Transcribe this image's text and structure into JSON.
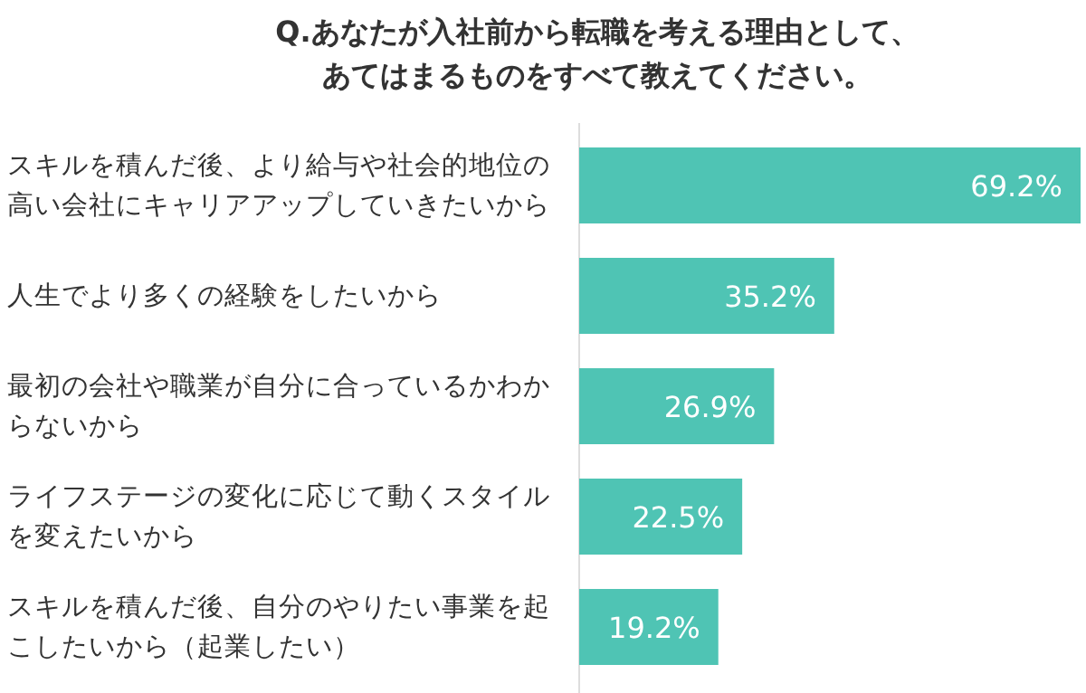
{
  "chart_data": {
    "type": "bar",
    "orientation": "horizontal",
    "title": "Q.あなたが入社前から転職を考える理由として、あてはまるものをすべて教えてください。",
    "categories": [
      "スキルを積んだ後、より給与や社会的地位の高い会社にキャリアアップしていきたいから",
      "人生でより多くの経験をしたいから",
      "最初の会社や職業が自分に合っているかわからないから",
      "ライフステージの変化に応じて動くスタイルを変えたいから",
      "スキルを積んだ後、自分のやりたい事業を起こしたいから（起業したい）"
    ],
    "values": [
      69.2,
      35.2,
      26.9,
      22.5,
      19.2
    ],
    "value_labels": [
      "69.2%",
      "35.2%",
      "26.9%",
      "22.5%",
      "19.2%"
    ],
    "color": "#4fc4b4"
  }
}
